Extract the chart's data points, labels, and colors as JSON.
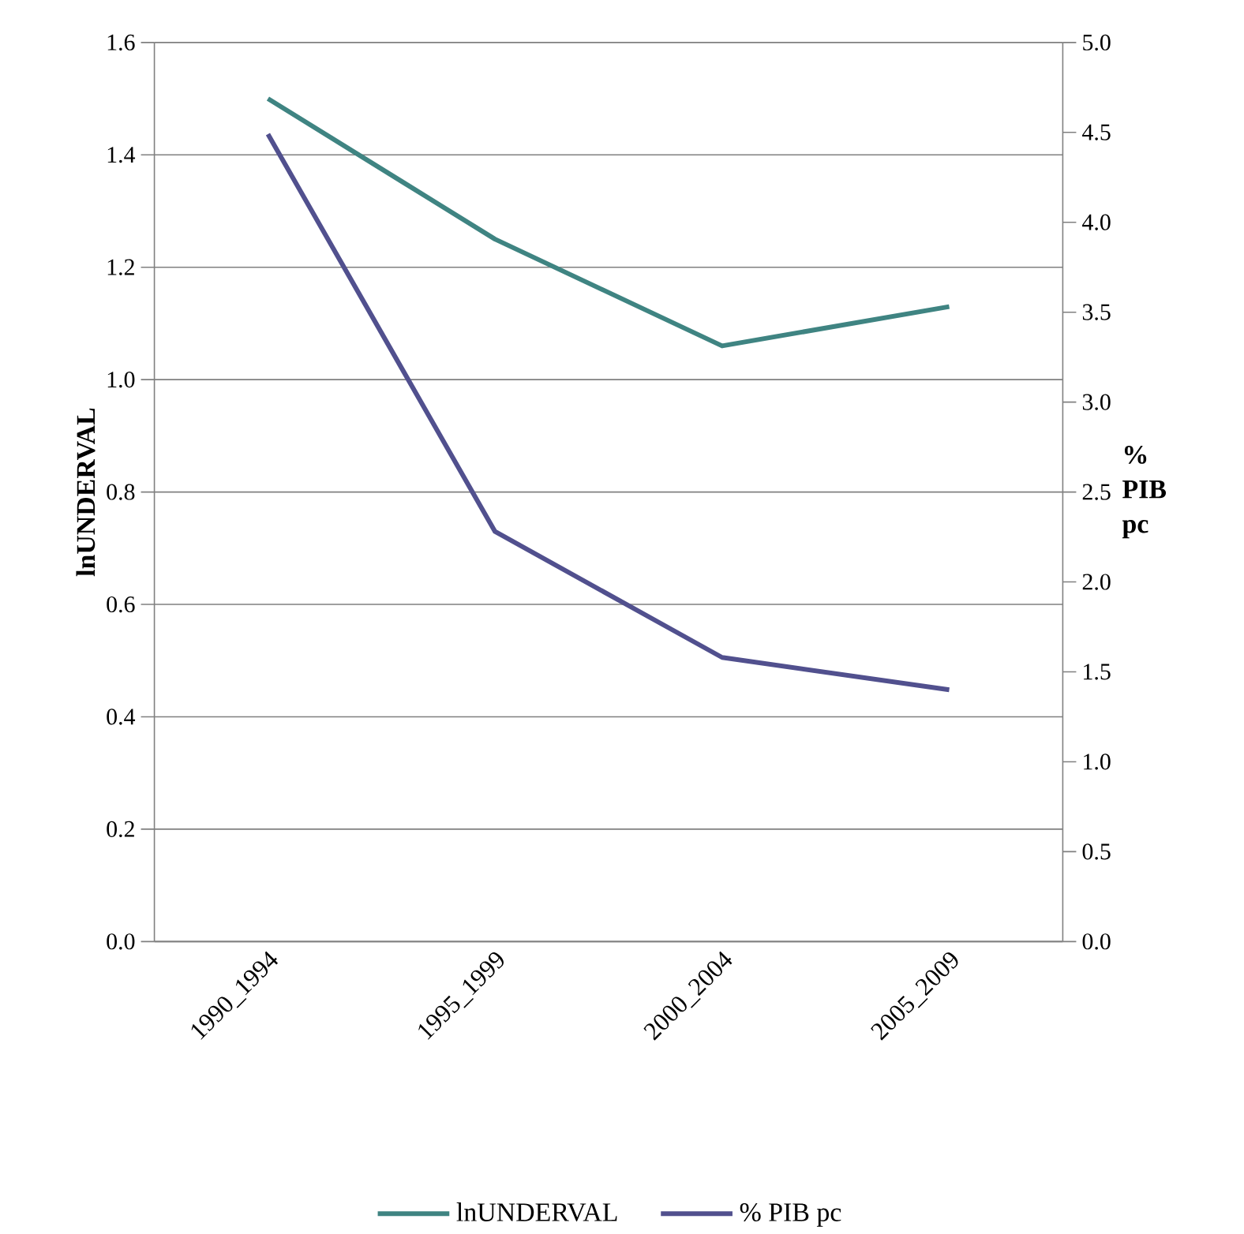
{
  "chart_data": {
    "type": "line",
    "categories": [
      "1990_1994",
      "1995_1999",
      "2000_2004",
      "2005_2009"
    ],
    "series": [
      {
        "name": "lnUNDERVAL",
        "color": "#3f8482",
        "values": [
          1.5,
          1.25,
          1.06,
          1.13
        ]
      },
      {
        "name": "% PIB pc",
        "color": "#51508e",
        "values": [
          4.49,
          2.28,
          1.58,
          1.4
        ],
        "axis": "y2"
      }
    ],
    "ylabel": "lnUNDERVAL",
    "y2label": "% PIB pc",
    "ylim": [
      0,
      1.6
    ],
    "yticks": [
      {
        "value": 0,
        "label": "0.0"
      },
      0.2,
      0.4,
      0.6,
      0.8,
      {
        "value": 1,
        "label": "1.0"
      },
      1.2,
      1.4,
      1.6
    ],
    "y2lim": [
      0,
      5
    ],
    "y2ticks": [
      {
        "value": 0,
        "label": "0.0"
      },
      0.5,
      {
        "value": 1,
        "label": "1.0"
      },
      1.5,
      {
        "value": 2,
        "label": "2.0"
      },
      2.5,
      {
        "value": 3,
        "label": "3.0"
      },
      3.5,
      {
        "value": 4,
        "label": "4.0"
      },
      4.5,
      {
        "value": 5,
        "label": "5.0"
      }
    ],
    "grid": "y",
    "legend": "bottom",
    "marker": "none",
    "line_style": "solid"
  }
}
